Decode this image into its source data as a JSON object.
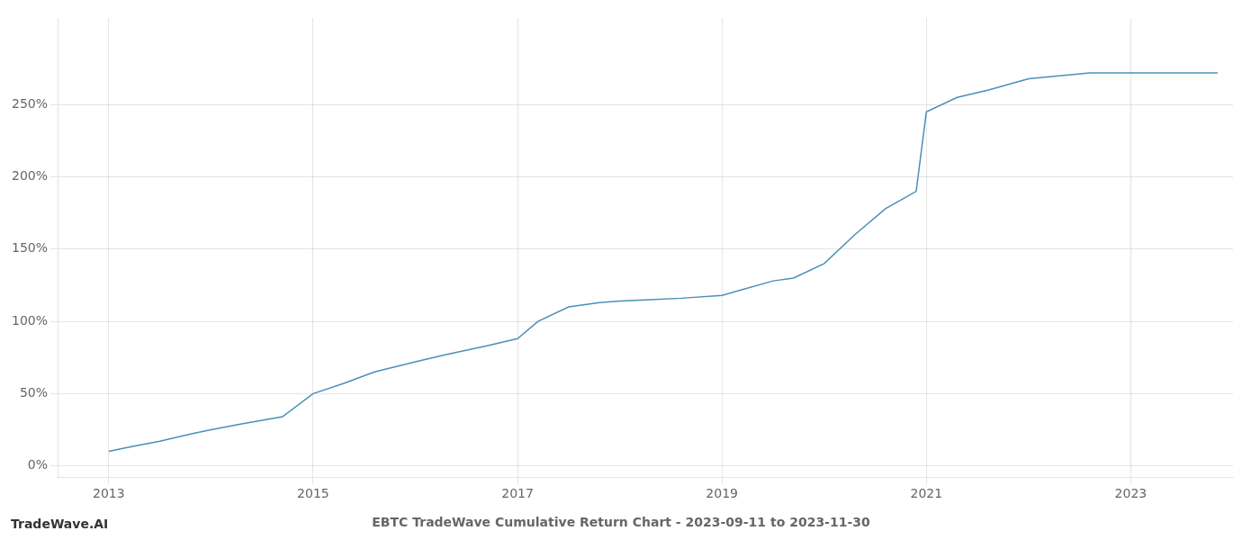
{
  "chart_data": {
    "type": "line",
    "title": "EBTC TradeWave Cumulative Return Chart - 2023-09-11 to 2023-11-30",
    "annotations": [
      "TradeWave.AI"
    ],
    "x": [
      2013.0,
      2013.2,
      2013.5,
      2013.8,
      2014.0,
      2014.3,
      2014.7,
      2015.0,
      2015.3,
      2015.6,
      2016.0,
      2016.3,
      2016.7,
      2017.0,
      2017.2,
      2017.5,
      2017.8,
      2018.0,
      2018.3,
      2018.6,
      2019.0,
      2019.2,
      2019.5,
      2019.7,
      2020.0,
      2020.3,
      2020.6,
      2020.9,
      2021.0,
      2021.3,
      2021.6,
      2022.0,
      2022.3,
      2022.6,
      2022.9,
      2023.0,
      2023.5,
      2023.85
    ],
    "values": [
      10,
      13,
      17,
      22,
      25,
      29,
      34,
      50,
      57,
      65,
      72,
      77,
      83,
      88,
      100,
      110,
      113,
      114,
      115,
      116,
      118,
      122,
      128,
      130,
      140,
      160,
      178,
      190,
      245,
      255,
      260,
      268,
      270,
      272,
      272,
      272,
      272,
      272
    ],
    "color": "#4a90b8",
    "xlim": [
      2012.5,
      2024.0
    ],
    "xticks": [
      2013,
      2015,
      2017,
      2019,
      2021,
      2023
    ],
    "ylim": [
      -8,
      310
    ],
    "yticks": [
      {
        "value": 0,
        "label": "0%"
      },
      {
        "value": 50,
        "label": "50%"
      },
      {
        "value": 100,
        "label": "100%"
      },
      {
        "value": 150,
        "label": "150%"
      },
      {
        "value": 200,
        "label": "200%"
      },
      {
        "value": 250,
        "label": "250%"
      }
    ],
    "grid": true
  }
}
